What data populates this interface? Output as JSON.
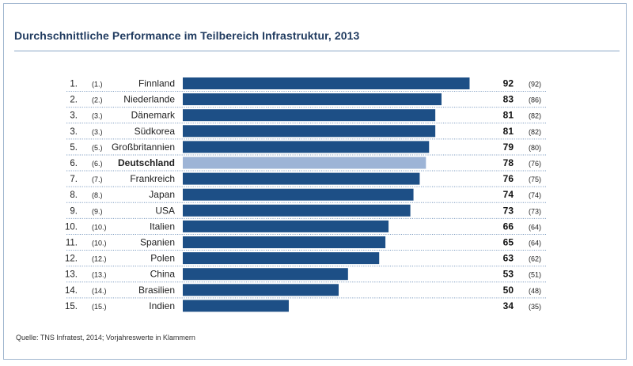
{
  "title": "Durchschnittliche Performance im Teilbereich Infrastruktur, 2013",
  "source": "Quelle: TNS Infratest, 2014; Vorjahreswerte in Klammern",
  "colors": {
    "bar": "#1d4f86",
    "highlight": "#9db4d6",
    "title": "#1f3a5f",
    "rule": "#8aa6c6"
  },
  "chart_data": {
    "type": "bar",
    "orientation": "horizontal",
    "highlight": "Deutschland",
    "xlim": [
      0,
      100
    ],
    "rows": [
      {
        "rank": "1.",
        "prev_rank": "(1.)",
        "country": "Finnland",
        "value": 92,
        "prev_value": "(92)"
      },
      {
        "rank": "2.",
        "prev_rank": "(2.)",
        "country": "Niederlande",
        "value": 83,
        "prev_value": "(86)"
      },
      {
        "rank": "3.",
        "prev_rank": "(3.)",
        "country": "Dänemark",
        "value": 81,
        "prev_value": "(82)"
      },
      {
        "rank": "3.",
        "prev_rank": "(3.)",
        "country": "Südkorea",
        "value": 81,
        "prev_value": "(82)"
      },
      {
        "rank": "5.",
        "prev_rank": "(5.)",
        "country": "Großbritannien",
        "value": 79,
        "prev_value": "(80)"
      },
      {
        "rank": "6.",
        "prev_rank": "(6.)",
        "country": "Deutschland",
        "value": 78,
        "prev_value": "(76)"
      },
      {
        "rank": "7.",
        "prev_rank": "(7.)",
        "country": "Frankreich",
        "value": 76,
        "prev_value": "(75)"
      },
      {
        "rank": "8.",
        "prev_rank": "(8.)",
        "country": "Japan",
        "value": 74,
        "prev_value": "(74)"
      },
      {
        "rank": "9.",
        "prev_rank": "(9.)",
        "country": "USA",
        "value": 73,
        "prev_value": "(73)"
      },
      {
        "rank": "10.",
        "prev_rank": "(10.)",
        "country": "Italien",
        "value": 66,
        "prev_value": "(64)"
      },
      {
        "rank": "11.",
        "prev_rank": "(10.)",
        "country": "Spanien",
        "value": 65,
        "prev_value": "(64)"
      },
      {
        "rank": "12.",
        "prev_rank": "(12.)",
        "country": "Polen",
        "value": 63,
        "prev_value": "(62)"
      },
      {
        "rank": "13.",
        "prev_rank": "(13.)",
        "country": "China",
        "value": 53,
        "prev_value": "(51)"
      },
      {
        "rank": "14.",
        "prev_rank": "(14.)",
        "country": "Brasilien",
        "value": 50,
        "prev_value": "(48)"
      },
      {
        "rank": "15.",
        "prev_rank": "(15.)",
        "country": "Indien",
        "value": 34,
        "prev_value": "(35)"
      }
    ]
  }
}
